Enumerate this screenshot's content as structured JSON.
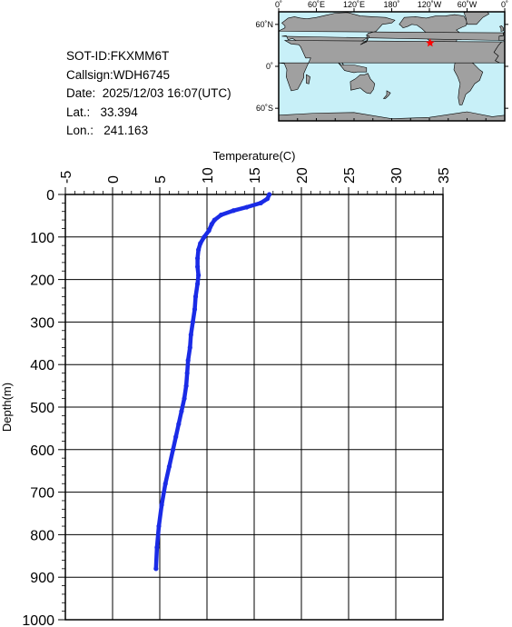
{
  "station": {
    "sot_id": "SOT-ID:FKXMM6T",
    "callsign": "Callsign:WDH6745",
    "date": "Date:  2025/12/03 16:07(UTC)",
    "lat": "Lat.:   33.394",
    "lon": "Lon.:   241.163"
  },
  "map": {
    "lon_labels": [
      "0˚",
      "60˚E",
      "120˚E",
      "180˚",
      "120˚W",
      "60˚W",
      "0˚"
    ],
    "lat_labels": [
      "60˚N",
      "0˚",
      "60˚S"
    ],
    "ocean_color": "#c8f0f8",
    "land_color": "#a0a0a0",
    "marker_color": "#ff0000",
    "marker_lat": 33.394,
    "marker_lon": 241.163
  },
  "chart_data": {
    "type": "line",
    "title": "",
    "xlabel": "Temperature(C)",
    "ylabel": "Depth(m)",
    "xlim": [
      -5,
      35
    ],
    "ylim": [
      0,
      1000
    ],
    "y_inverted": true,
    "x_axis_position": "top",
    "grid": true,
    "x_ticks": [
      "-5",
      "0",
      "5",
      "10",
      "15",
      "20",
      "25",
      "30",
      "35"
    ],
    "y_ticks": [
      "0",
      "100",
      "200",
      "300",
      "400",
      "500",
      "600",
      "700",
      "800",
      "900",
      "1000"
    ],
    "line_color": "#1a2be6",
    "series": [
      {
        "x": [
          16.6,
          16.4,
          15.7,
          14.2,
          12.8,
          11.5,
          10.8,
          10.5,
          10.2,
          9.7,
          9.3,
          9.1,
          9.0,
          9.0,
          9.1,
          9.0,
          8.8,
          8.7,
          8.5,
          8.3,
          8.2,
          8.0,
          7.9,
          7.8,
          7.6,
          7.3,
          7.0,
          6.7,
          6.4,
          6.0,
          5.6,
          5.2,
          4.9,
          4.7,
          4.6
        ],
        "y": [
          0,
          10,
          20,
          30,
          38,
          48,
          60,
          70,
          85,
          100,
          115,
          130,
          150,
          170,
          190,
          210,
          240,
          270,
          300,
          330,
          360,
          390,
          420,
          450,
          480,
          510,
          540,
          570,
          600,
          640,
          680,
          730,
          780,
          830,
          880
        ]
      }
    ]
  }
}
